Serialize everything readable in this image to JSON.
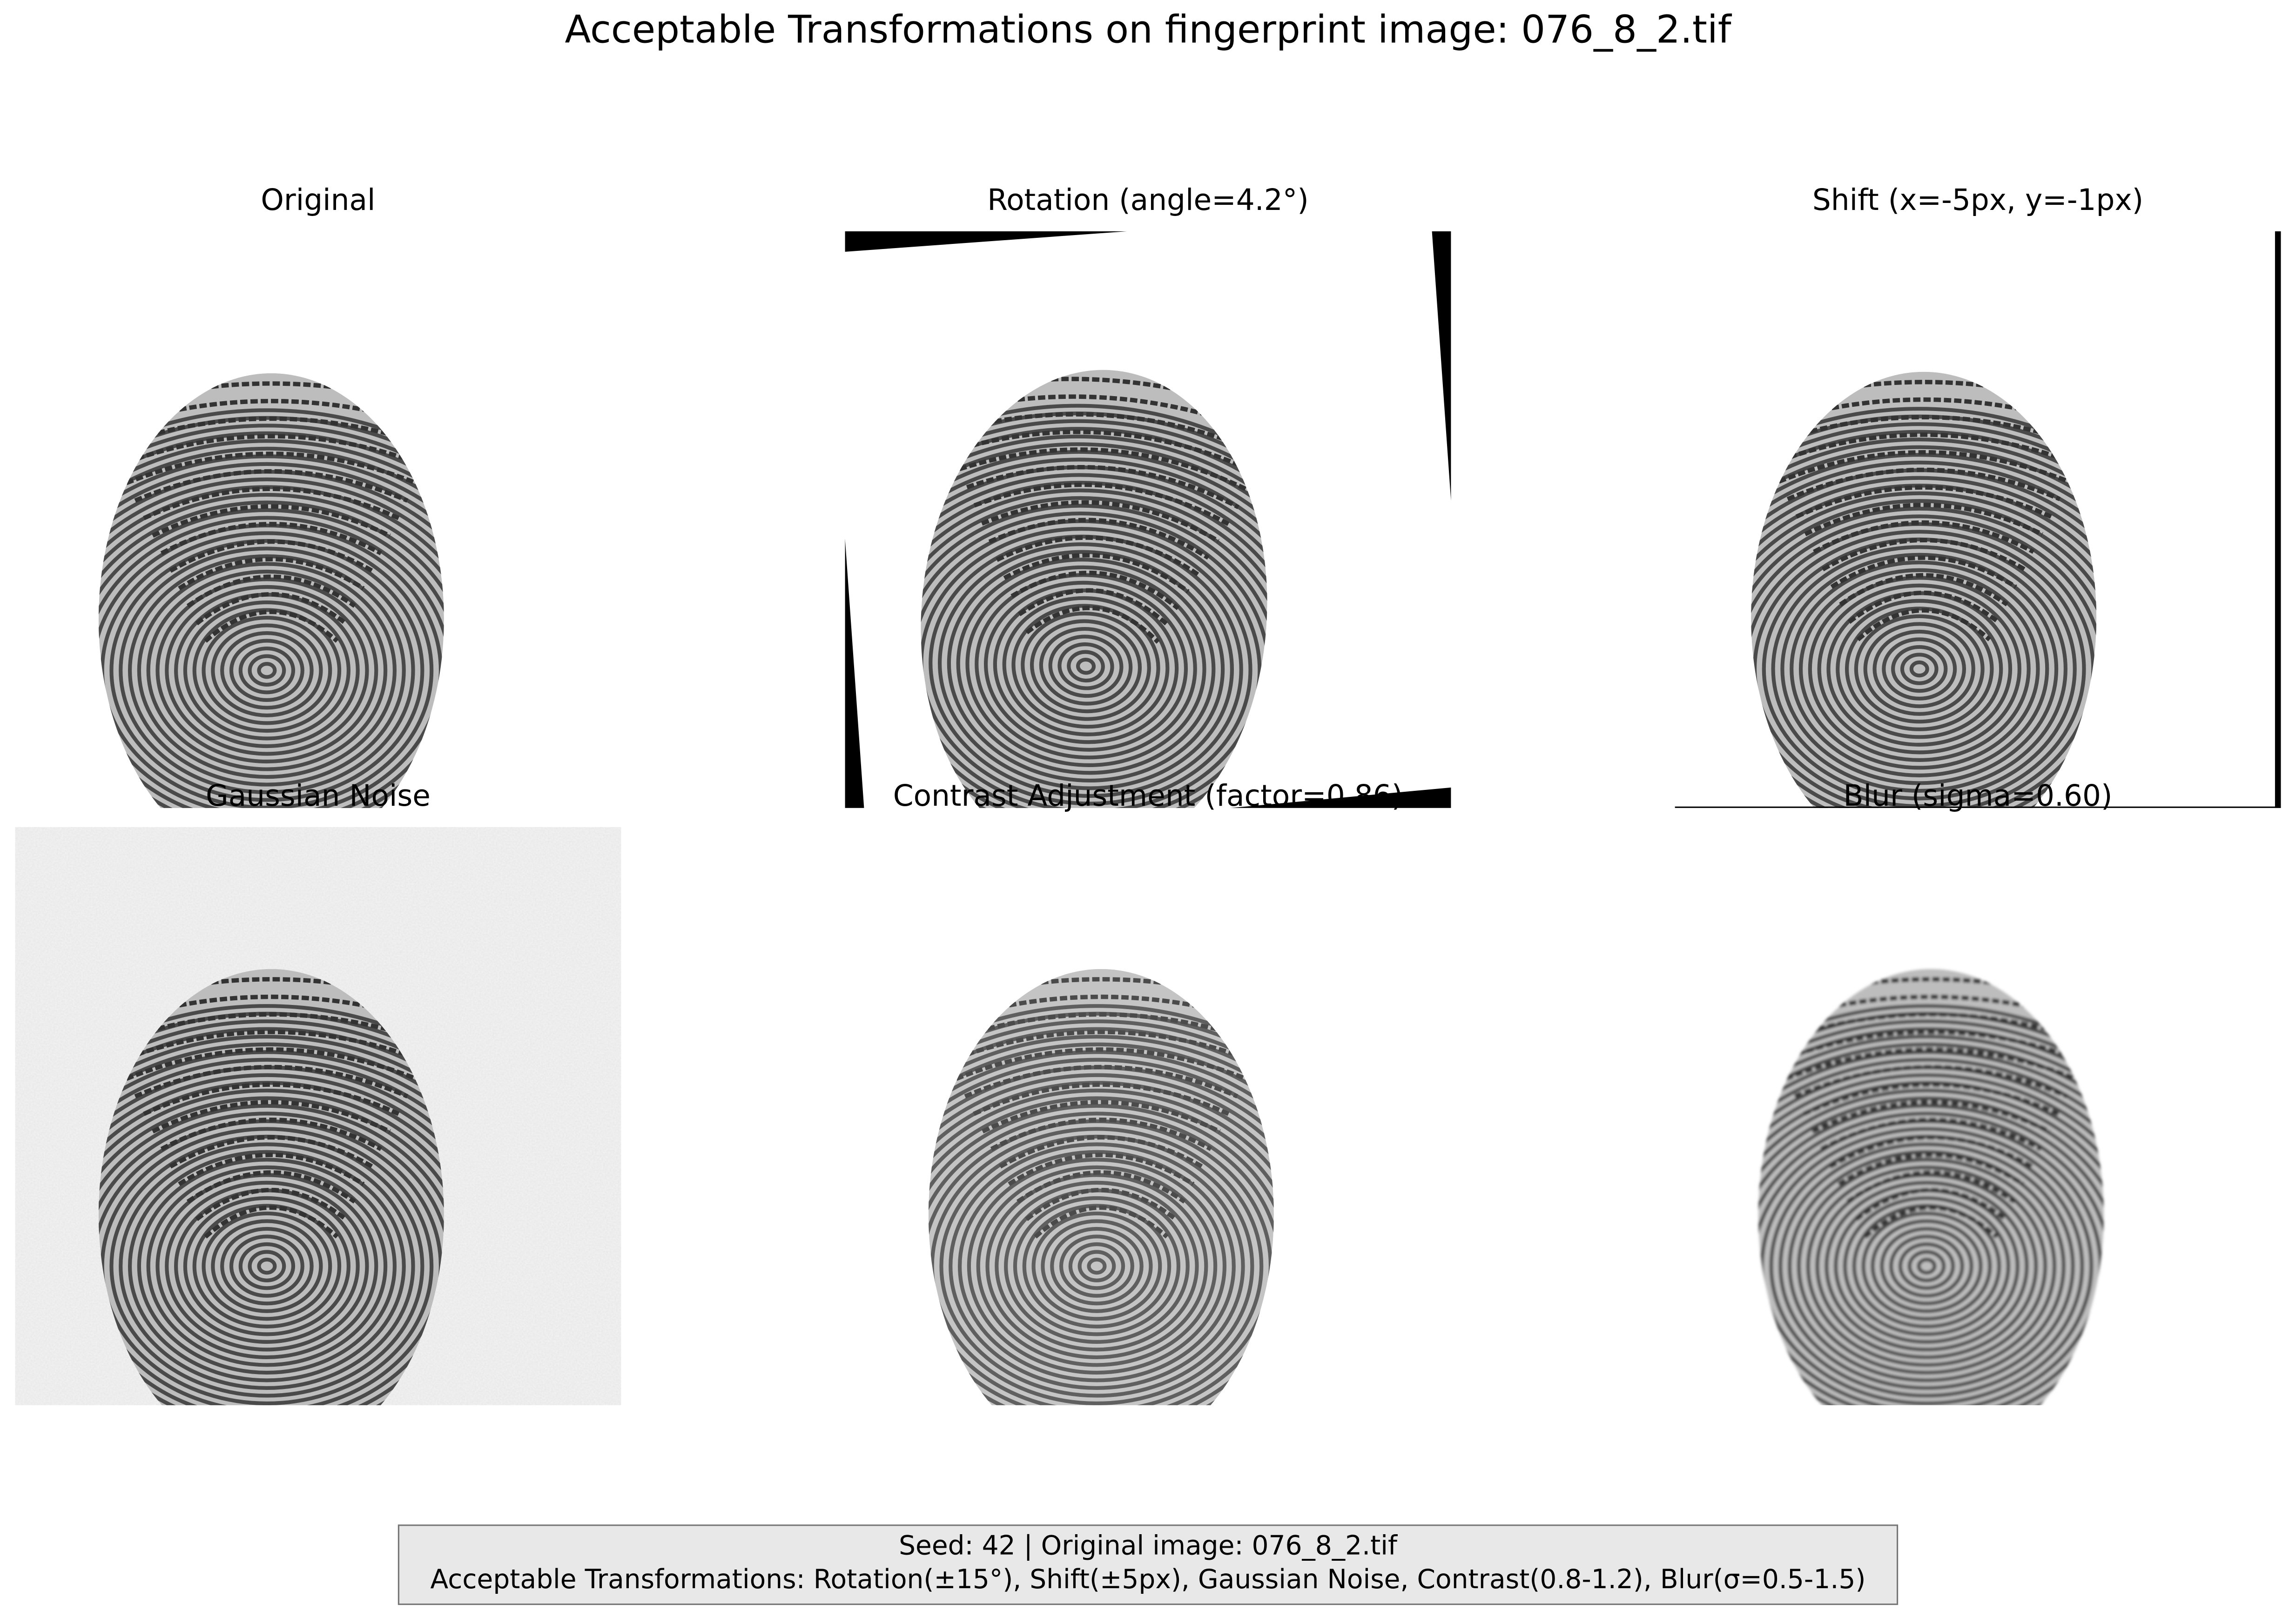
{
  "title": "Acceptable Transformations on fingerprint image: 076_8_2.tif",
  "panels": [
    {
      "title": "Original"
    },
    {
      "title": "Rotation (angle=4.2°)"
    },
    {
      "title": "Shift (x=-5px, y=-1px)"
    },
    {
      "title": "Gaussian Noise"
    },
    {
      "title": "Contrast Adjustment (factor=0.86)"
    },
    {
      "title": "Blur (sigma=0.60)"
    }
  ],
  "footer": {
    "lines": [
      "Seed: 42 | Original image: 076_8_2.tif",
      "Acceptable Transformations: Rotation(±15°), Shift(±5px), Gaussian Noise, Contrast(0.8-1.2), Blur(σ=0.5-1.5)"
    ]
  }
}
